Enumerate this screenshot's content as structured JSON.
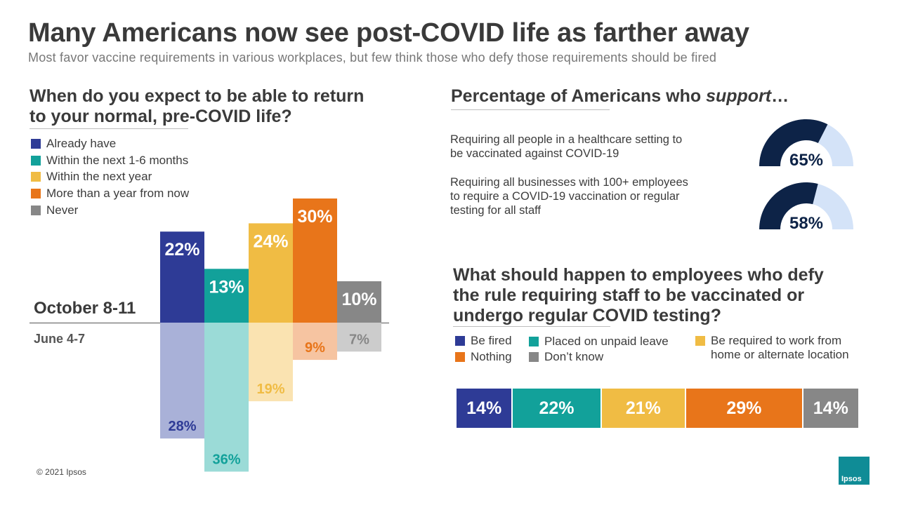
{
  "title": "Many Americans now see post-COVID life as farther away",
  "subtitle": "Most favor vaccine requirements in various workplaces, but few think those who defy those requirements should be fired",
  "colors": {
    "blue": "#2e3b96",
    "teal": "#12a19a",
    "yellow": "#f0bc44",
    "orange": "#e8751a",
    "gray": "#878787",
    "blue_light": "#a9b1d8",
    "teal_light": "#9bdbd7",
    "yellow_light": "#fae3b1",
    "orange_light": "#f6c4a1",
    "gray_light": "#cccccc",
    "navy": "#0d2347",
    "pale_blue": "#d4e3f8"
  },
  "return_chart": {
    "question_line1": "When do you expect to be able to return",
    "question_line2": "to your normal, pre-COVID life?",
    "legend": [
      "Already have",
      "Within the next 1-6 months",
      "Within the next year",
      "More than a year from now",
      "Never"
    ],
    "period_top": "October 8-11",
    "period_bottom": "June 4-7"
  },
  "support": {
    "title_plain": "Percentage of Americans who ",
    "title_italic": "support",
    "title_end": "…",
    "items": [
      {
        "line1": "Requiring all people in a healthcare setting to",
        "line2": "be vaccinated against COVID-19",
        "line3": "",
        "value": 65,
        "label": "65%"
      },
      {
        "line1": "Requiring all businesses with 100+ employees",
        "line2": "to require a COVID-19 vaccination or regular",
        "line3": "testing for all staff",
        "value": 58,
        "label": "58%"
      }
    ]
  },
  "defy": {
    "question_line1": "What should happen to employees who defy",
    "question_line2": "the rule requiring staff to be vaccinated or",
    "question_line3": "undergo regular COVID testing?",
    "legend": [
      "Be fired",
      "Nothing",
      "Placed on unpaid leave",
      "Don’t know",
      "Be required to work from",
      "home or alternate location"
    ]
  },
  "chart_data": [
    {
      "type": "bar",
      "title": "When do you expect to be able to return to your normal, pre-COVID life?",
      "categories": [
        "Already have",
        "Within the next 1-6 months",
        "Within the next year",
        "More than a year from now",
        "Never"
      ],
      "series": [
        {
          "name": "October 8-11",
          "values": [
            22,
            13,
            24,
            30,
            10
          ],
          "labels": [
            "22%",
            "13%",
            "24%",
            "30%",
            "10%"
          ]
        },
        {
          "name": "June 4-7",
          "values": [
            28,
            36,
            19,
            9,
            7
          ],
          "labels": [
            "28%",
            "36%",
            "19%",
            "9%",
            "7%"
          ]
        }
      ]
    },
    {
      "type": "bar",
      "title": "What should happen to employees who defy the rule requiring staff to be vaccinated or undergo regular COVID testing?",
      "categories": [
        "Be fired",
        "Placed on unpaid leave",
        "Be required to work from home or alternate location",
        "Nothing",
        "Don’t know"
      ],
      "values": [
        14,
        22,
        21,
        29,
        14
      ],
      "labels": [
        "14%",
        "22%",
        "21%",
        "29%",
        "14%"
      ]
    }
  ],
  "copyright": "© 2021 Ipsos",
  "logo_text": "Ipsos"
}
